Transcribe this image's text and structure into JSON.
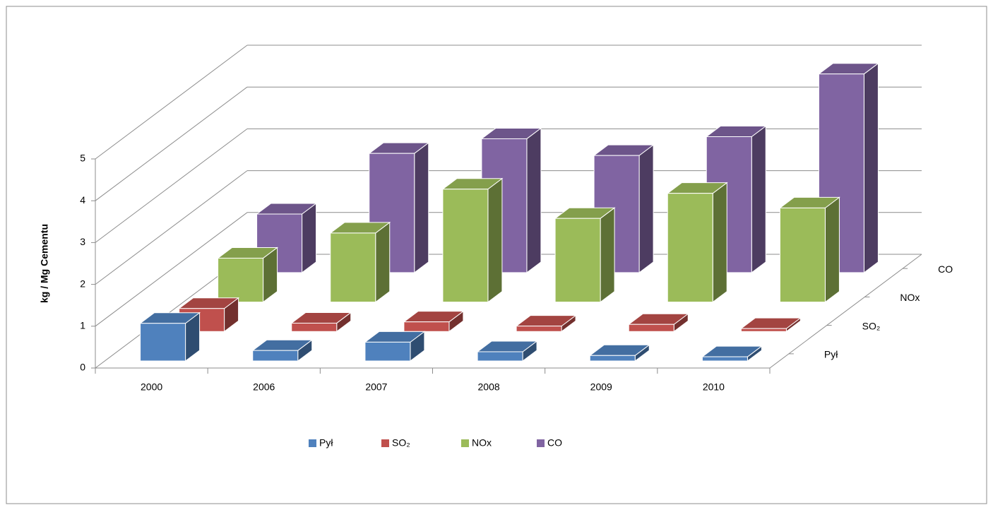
{
  "chart_data": {
    "type": "bar3d",
    "y_axis_label": "kg / Mg Cementu",
    "categories": [
      "2000",
      "2006",
      "2007",
      "2008",
      "2009",
      "2010"
    ],
    "series": [
      {
        "name": "Pył",
        "color": "#4f81bd",
        "values": [
          0.9,
          0.25,
          0.45,
          0.22,
          0.13,
          0.1
        ]
      },
      {
        "name": "SO₂",
        "color": "#c0504d",
        "values": [
          0.55,
          0.2,
          0.23,
          0.13,
          0.17,
          0.07
        ]
      },
      {
        "name": "NOx",
        "color": "#9bbb59",
        "values": [
          1.05,
          1.65,
          2.7,
          2.0,
          2.6,
          2.25
        ]
      },
      {
        "name": "CO",
        "color": "#8064a2",
        "values": [
          1.4,
          2.85,
          3.2,
          2.8,
          3.25,
          4.75
        ]
      }
    ],
    "ylim": [
      0,
      5
    ],
    "yticks": [
      0,
      1,
      2,
      3,
      4,
      5
    ],
    "grid": true,
    "legend": "bottom"
  }
}
